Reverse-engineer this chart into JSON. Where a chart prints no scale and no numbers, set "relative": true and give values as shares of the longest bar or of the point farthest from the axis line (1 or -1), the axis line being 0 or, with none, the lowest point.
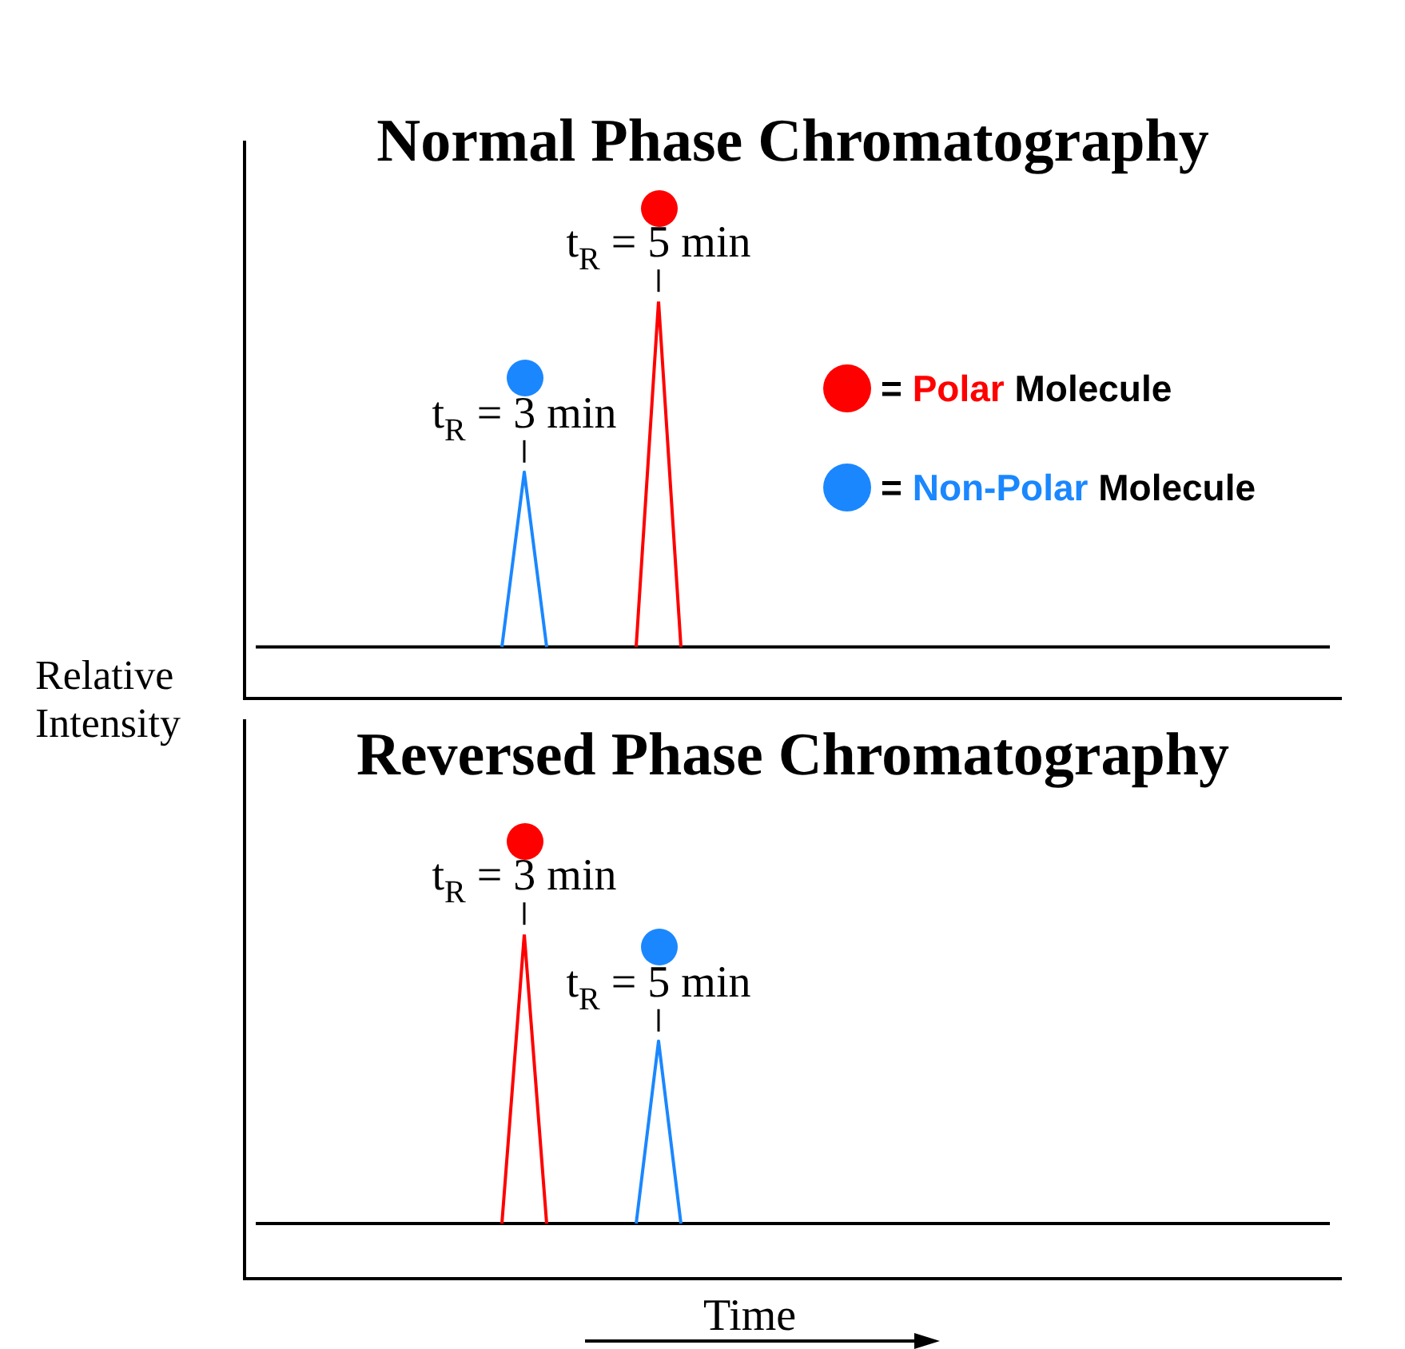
{
  "chart_data": [
    {
      "type": "line",
      "title": "Normal Phase Chromatography",
      "ylabel": "Relative Intensity",
      "relative": true,
      "legend": "right",
      "categories": [
        null,
        null,
        null,
        null,
        null,
        null,
        null,
        null,
        null,
        null,
        null,
        null,
        null,
        null,
        null,
        null,
        null,
        null,
        null,
        null,
        null,
        null,
        null,
        null,
        null,
        null,
        null,
        null,
        null,
        null,
        null,
        null,
        null,
        null,
        null,
        null,
        null,
        null,
        null,
        null,
        null,
        null,
        null,
        null,
        null,
        null,
        null,
        null,
        null
      ],
      "series": [
        {
          "name": "= Polar Molecule",
          "color": "#ff0000",
          "values": [
            null,
            null,
            null,
            null,
            null,
            null,
            null,
            null,
            null,
            null,
            null,
            null,
            null,
            null,
            null,
            null,
            null,
            0.13,
            1,
            0.13,
            null,
            null,
            null,
            null,
            null,
            null,
            null,
            null,
            null,
            null,
            null,
            null,
            null,
            null,
            null,
            null,
            null,
            null,
            null,
            null,
            null,
            null,
            null,
            null,
            null,
            null,
            null,
            null,
            null
          ]
        },
        {
          "name": "= Non-Polar Molecule",
          "color": "#1a87ff",
          "values": [
            null,
            null,
            null,
            null,
            null,
            null,
            null,
            null,
            null,
            null,
            null,
            0.13,
            0.57,
            0.13,
            null,
            null,
            null,
            null,
            null,
            null,
            null,
            null,
            null,
            null,
            null,
            null,
            null,
            null,
            null,
            null,
            null,
            null,
            null,
            null,
            null,
            null,
            null,
            null,
            null,
            null,
            null,
            null,
            null,
            null,
            null,
            null,
            null,
            null,
            null
          ]
        },
        {
          "color": "#000000",
          "values": [
            0.13,
            0.13,
            0.13,
            0.13,
            0.13,
            0.13,
            0.13,
            0.13,
            0.13,
            0.13,
            0.13,
            0.13,
            0.13,
            0.13,
            0.13,
            0.13,
            0.13,
            0.13,
            0.13,
            0.13,
            0.13,
            0.13,
            0.13,
            0.13,
            0.13,
            0.13,
            0.13,
            0.13,
            0.13,
            0.13,
            0.13,
            0.13,
            0.13,
            0.13,
            0.13,
            0.13,
            0.13,
            0.13,
            0.13,
            0.13,
            0.13,
            0.13,
            0.13,
            0.13,
            0.13,
            0.13,
            0.13,
            0.13,
            0.13
          ]
        }
      ],
      "annotations": [
        {
          "text": "t$_{R}$ = 5 min",
          "y": 1
        },
        {
          "text": "t$_{R}$ = 3 min",
          "y": 0.57
        }
      ]
    },
    {
      "type": "line",
      "title": "Reversed Phase Chromatography",
      "xlabel": "Time",
      "relative": true,
      "categories": [
        null,
        null,
        null,
        null,
        null,
        null,
        null,
        null,
        null,
        null,
        null,
        null,
        null,
        null,
        null,
        null,
        null,
        null,
        null,
        null,
        null,
        null,
        null,
        null,
        null,
        null,
        null,
        null,
        null,
        null,
        null,
        null,
        null,
        null,
        null,
        null,
        null,
        null,
        null,
        null,
        null,
        null,
        null,
        null,
        null,
        null,
        null,
        null,
        null
      ],
      "series": [
        {
          "color": "#ff0000",
          "values": [
            null,
            null,
            null,
            null,
            null,
            null,
            null,
            null,
            null,
            null,
            null,
            0.16,
            1,
            0.16,
            null,
            null,
            null,
            null,
            null,
            null,
            null,
            null,
            null,
            null,
            null,
            null,
            null,
            null,
            null,
            null,
            null,
            null,
            null,
            null,
            null,
            null,
            null,
            null,
            null,
            null,
            null,
            null,
            null,
            null,
            null,
            null,
            null,
            null,
            null
          ]
        },
        {
          "color": "#1a87ff",
          "values": [
            null,
            null,
            null,
            null,
            null,
            null,
            null,
            null,
            null,
            null,
            null,
            null,
            null,
            null,
            null,
            null,
            null,
            0.16,
            0.69,
            0.16,
            null,
            null,
            null,
            null,
            null,
            null,
            null,
            null,
            null,
            null,
            null,
            null,
            null,
            null,
            null,
            null,
            null,
            null,
            null,
            null,
            null,
            null,
            null,
            null,
            null,
            null,
            null,
            null,
            null
          ]
        },
        {
          "color": "#000000",
          "values": [
            0.16,
            0.16,
            0.16,
            0.16,
            0.16,
            0.16,
            0.16,
            0.16,
            0.16,
            0.16,
            0.16,
            0.16,
            0.16,
            0.16,
            0.16,
            0.16,
            0.16,
            0.16,
            0.16,
            0.16,
            0.16,
            0.16,
            0.16,
            0.16,
            0.16,
            0.16,
            0.16,
            0.16,
            0.16,
            0.16,
            0.16,
            0.16,
            0.16,
            0.16,
            0.16,
            0.16,
            0.16,
            0.16,
            0.16,
            0.16,
            0.16,
            0.16,
            0.16,
            0.16,
            0.16,
            0.16,
            0.16,
            0.16,
            0.16
          ]
        }
      ],
      "annotations": [
        {
          "text": "t$_{R}$ = 3 min",
          "y": 1
        },
        {
          "text": "t$_{R}$ = 5 min",
          "y": 0.69
        }
      ]
    }
  ]
}
